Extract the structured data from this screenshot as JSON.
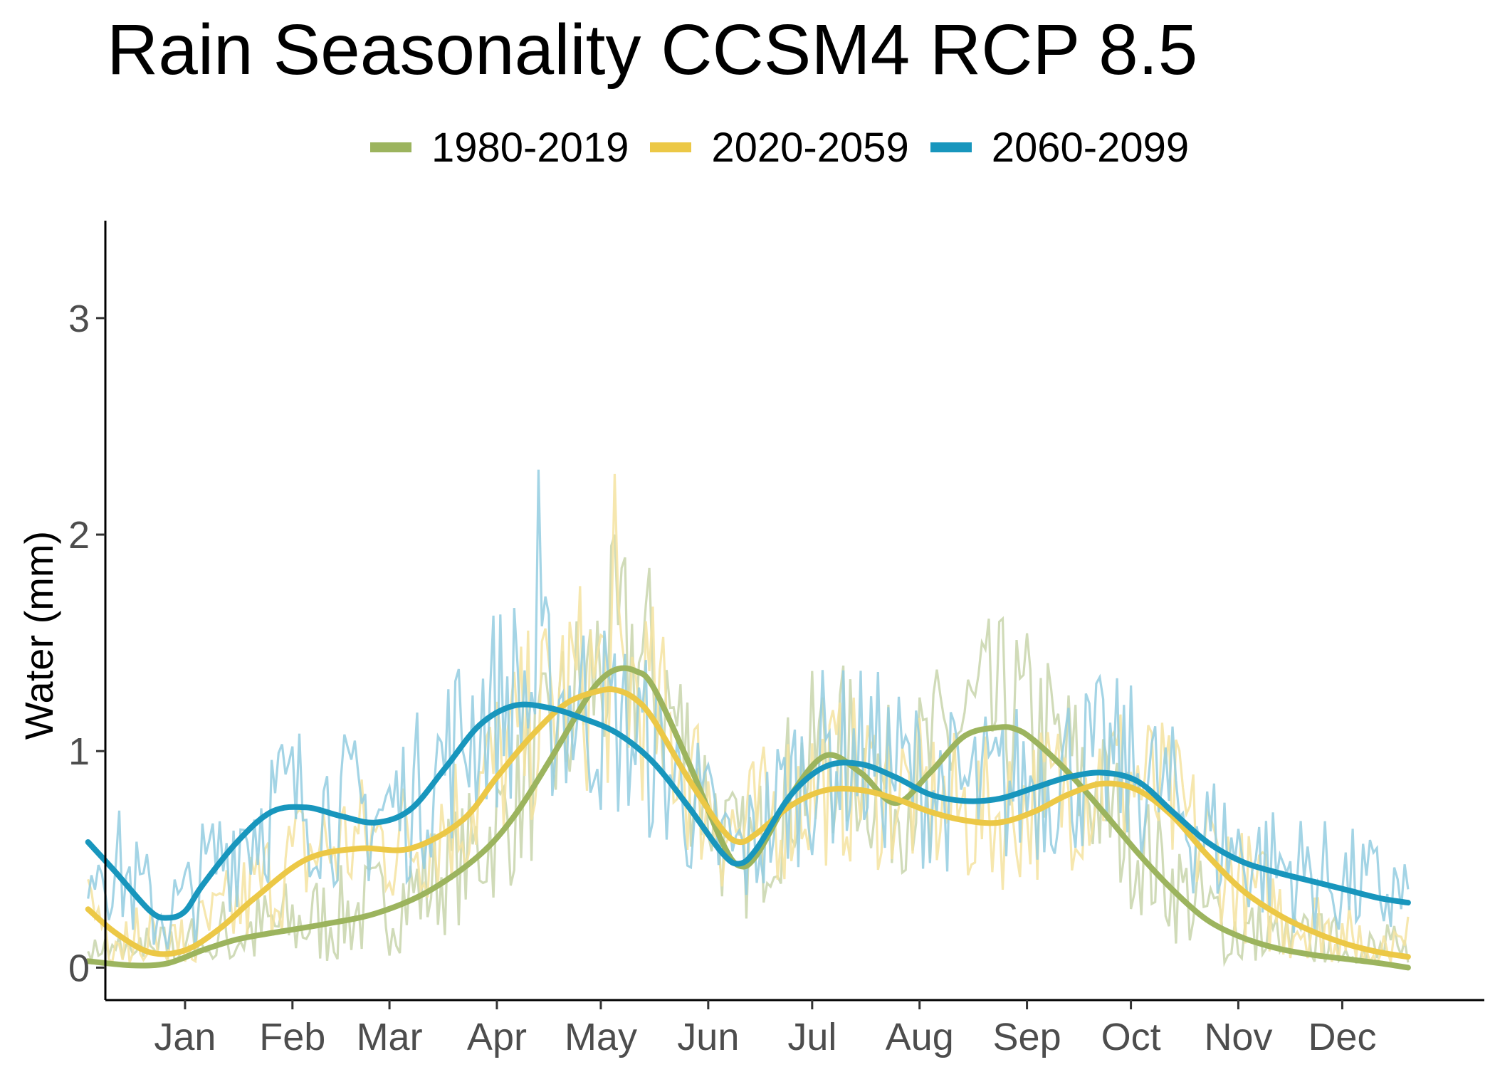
{
  "chart_data": {
    "type": "line",
    "title": "Rain Seasonality CCSM4 RCP 8.5",
    "xlabel": "",
    "ylabel": "Water (mm)",
    "x_ticks": [
      "Jan",
      "Feb",
      "Mar",
      "Apr",
      "May",
      "Jun",
      "Jul",
      "Aug",
      "Sep",
      "Oct",
      "Nov",
      "Dec"
    ],
    "x_tick_days": [
      15,
      46,
      74,
      105,
      135,
      166,
      196,
      227,
      258,
      288,
      319,
      349
    ],
    "xlim": [
      -8,
      390
    ],
    "y_ticks": [
      0,
      1,
      2,
      3
    ],
    "ylim": [
      -0.15,
      3.45
    ],
    "grid": false,
    "legend_position": "top",
    "smoothed_series": [
      {
        "name": "1980-2019",
        "color": "#9cb45e",
        "x": [
          -13,
          0,
          10,
          20,
          30,
          40,
          55,
          70,
          85,
          100,
          110,
          120,
          130,
          135,
          140,
          145,
          150,
          160,
          170,
          175,
          180,
          190,
          200,
          210,
          220,
          230,
          240,
          250,
          255,
          260,
          270,
          280,
          290,
          300,
          310,
          320,
          330,
          340,
          350,
          360,
          368
        ],
        "y": [
          0.03,
          0.01,
          0.02,
          0.08,
          0.13,
          0.16,
          0.2,
          0.25,
          0.35,
          0.52,
          0.7,
          0.95,
          1.22,
          1.33,
          1.38,
          1.37,
          1.3,
          0.96,
          0.58,
          0.47,
          0.52,
          0.8,
          0.98,
          0.9,
          0.76,
          0.9,
          1.07,
          1.11,
          1.1,
          1.05,
          0.9,
          0.72,
          0.53,
          0.36,
          0.22,
          0.14,
          0.09,
          0.06,
          0.04,
          0.02,
          0.0
        ]
      },
      {
        "name": "2020-2059",
        "color": "#ecc846",
        "x": [
          -13,
          -5,
          5,
          15,
          25,
          35,
          50,
          65,
          80,
          95,
          105,
          115,
          125,
          135,
          140,
          145,
          150,
          160,
          170,
          175,
          180,
          190,
          200,
          210,
          220,
          230,
          240,
          250,
          260,
          270,
          280,
          290,
          300,
          310,
          320,
          330,
          340,
          350,
          360,
          368
        ],
        "y": [
          0.27,
          0.16,
          0.07,
          0.08,
          0.18,
          0.32,
          0.5,
          0.55,
          0.55,
          0.68,
          0.88,
          1.07,
          1.22,
          1.28,
          1.28,
          1.24,
          1.15,
          0.88,
          0.64,
          0.58,
          0.62,
          0.75,
          0.82,
          0.82,
          0.78,
          0.72,
          0.68,
          0.67,
          0.72,
          0.8,
          0.85,
          0.82,
          0.7,
          0.52,
          0.36,
          0.25,
          0.17,
          0.11,
          0.07,
          0.05
        ]
      },
      {
        "name": "2060-2099",
        "color": "#1896bd",
        "x": [
          -13,
          -5,
          5,
          10,
          15,
          20,
          30,
          40,
          50,
          60,
          70,
          80,
          90,
          100,
          110,
          120,
          130,
          140,
          150,
          160,
          170,
          175,
          180,
          190,
          200,
          210,
          220,
          230,
          240,
          250,
          260,
          270,
          280,
          290,
          300,
          310,
          320,
          330,
          340,
          350,
          360,
          368
        ],
        "y": [
          0.58,
          0.44,
          0.26,
          0.23,
          0.26,
          0.38,
          0.58,
          0.72,
          0.74,
          0.7,
          0.67,
          0.73,
          0.92,
          1.12,
          1.21,
          1.2,
          1.15,
          1.08,
          0.95,
          0.75,
          0.53,
          0.48,
          0.55,
          0.8,
          0.93,
          0.94,
          0.88,
          0.8,
          0.77,
          0.78,
          0.83,
          0.88,
          0.9,
          0.86,
          0.72,
          0.58,
          0.49,
          0.44,
          0.4,
          0.36,
          0.32,
          0.3
        ]
      }
    ],
    "daily_series": [
      {
        "name": "1980-2019",
        "color": "#c8d5ac",
        "peak": 2.0
      },
      {
        "name": "2020-2059",
        "color": "#f5e3a0",
        "peak": 2.28
      },
      {
        "name": "2060-2099",
        "color": "#93cde0",
        "peak": 2.3
      }
    ]
  }
}
